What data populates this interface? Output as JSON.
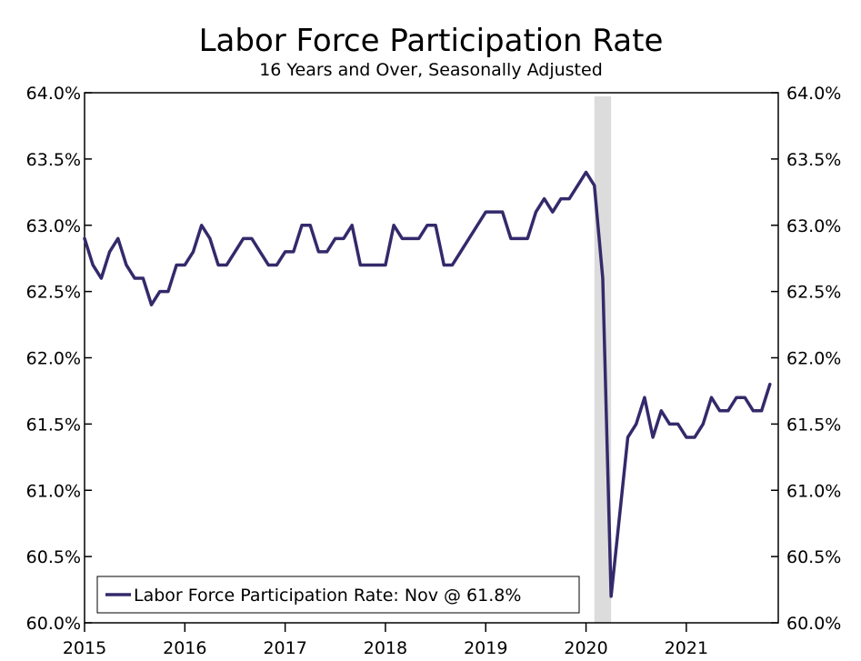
{
  "chart_data": {
    "type": "line",
    "title": "Labor Force Participation Rate",
    "subtitle": "16 Years and Over, Seasonally Adjusted",
    "xlabel": "",
    "ylabel": "",
    "y_ticks": [
      "60.0%",
      "60.5%",
      "61.0%",
      "61.5%",
      "62.0%",
      "62.5%",
      "63.0%",
      "63.5%",
      "64.0%"
    ],
    "x_ticks": [
      "2015",
      "2016",
      "2017",
      "2018",
      "2019",
      "2020",
      "2021"
    ],
    "ylim": [
      60.0,
      64.0
    ],
    "xlim": [
      "2015-01",
      "2021-12"
    ],
    "y_axis_right": true,
    "grid": false,
    "recession_shading": {
      "start": "2020-02",
      "end": "2020-04",
      "color": "#dcdcdc"
    },
    "legend": {
      "placement": "bottom-left",
      "label": "Labor Force Participation Rate: Nov @ 61.8%"
    },
    "series": [
      {
        "name": "Labor Force Participation Rate: Nov @ 61.8%",
        "color": "#332a6b",
        "start": "2015-01",
        "values": [
          62.9,
          62.7,
          62.6,
          62.8,
          62.9,
          62.7,
          62.6,
          62.6,
          62.4,
          62.5,
          62.5,
          62.7,
          62.7,
          62.8,
          63.0,
          62.9,
          62.7,
          62.7,
          62.8,
          62.9,
          62.9,
          62.8,
          62.7,
          62.7,
          62.8,
          62.8,
          63.0,
          63.0,
          62.8,
          62.8,
          62.9,
          62.9,
          63.0,
          62.7,
          62.7,
          62.7,
          62.7,
          63.0,
          62.9,
          62.9,
          62.9,
          63.0,
          63.0,
          62.7,
          62.7,
          62.8,
          62.9,
          63.0,
          63.1,
          63.1,
          63.1,
          62.9,
          62.9,
          62.9,
          63.1,
          63.2,
          63.1,
          63.2,
          63.2,
          63.3,
          63.4,
          63.3,
          62.6,
          60.2,
          60.8,
          61.4,
          61.5,
          61.7,
          61.4,
          61.6,
          61.5,
          61.5,
          61.4,
          61.4,
          61.5,
          61.7,
          61.6,
          61.6,
          61.7,
          61.7,
          61.6,
          61.6,
          61.8
        ]
      }
    ]
  }
}
